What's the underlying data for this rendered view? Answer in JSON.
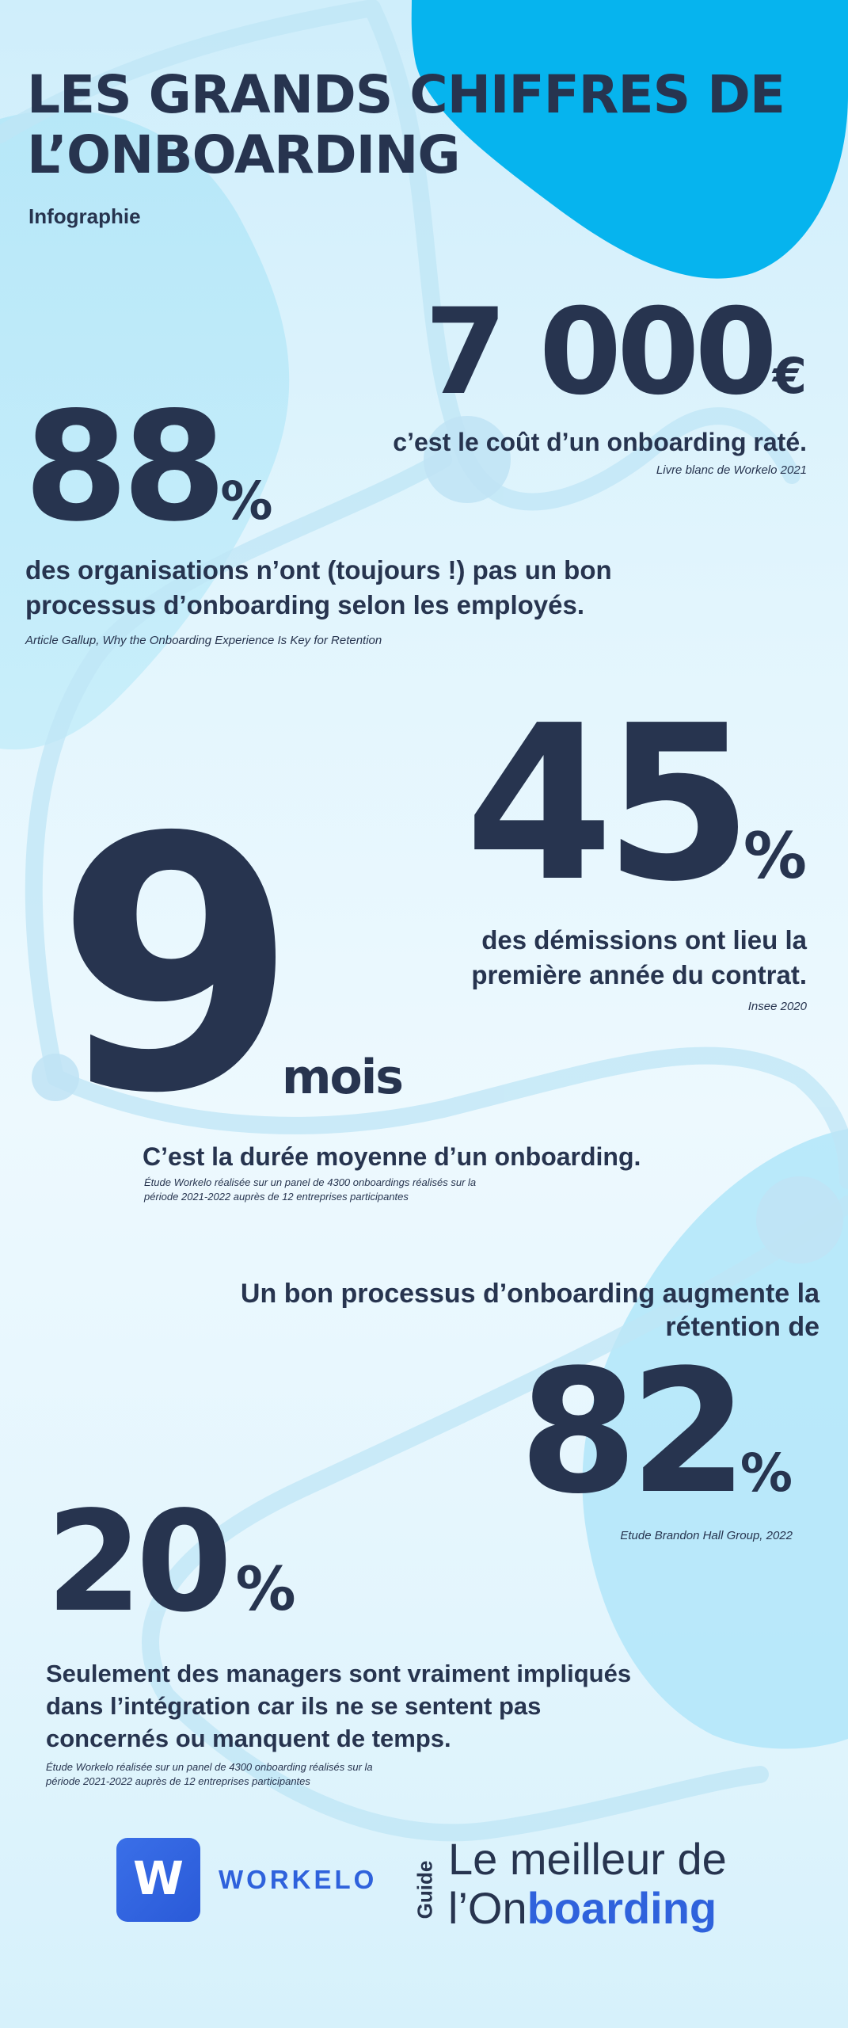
{
  "header": {
    "title_line1": "LES GRANDS CHIFFRES DE",
    "title_line2": "L’ONBOARDING",
    "subtitle": "Infographie"
  },
  "stats": {
    "cost": {
      "value": "7 000",
      "unit": "€",
      "text": "c’est le coût d’un onboarding raté.",
      "source": "Livre blanc de Workelo 2021"
    },
    "organisations": {
      "value": "88",
      "unit": "%",
      "text_line1": "des organisations n’ont (toujours !) pas un bon",
      "text_line2": "processus d’onboarding selon les employés.",
      "source": "Article Gallup, Why the Onboarding Experience Is Key for Retention"
    },
    "resignations": {
      "value": "45",
      "unit": "%",
      "text_line1": "des démissions ont lieu la",
      "text_line2": "première année du contrat.",
      "source": "Insee 2020"
    },
    "duration": {
      "value": "9",
      "unit": "mois",
      "text": "C’est la durée moyenne d’un onboarding.",
      "source_line1": "Étude Workelo réalisée sur un panel de 4300 onboardings réalisés sur la",
      "source_line2": "période 2021-2022 auprès de 12 entreprises participantes"
    },
    "retention": {
      "text_line1": "Un bon processus d’onboarding augmente la",
      "text_line2": "rétention de",
      "value": "82",
      "unit": "%",
      "source": "Etude Brandon Hall Group, 2022"
    },
    "managers": {
      "value": "20",
      "unit": "%",
      "text_line1": "Seulement des managers sont vraiment impliqués",
      "text_line2": "dans l’intégration car ils ne se sentent pas",
      "text_line3": "concernés ou manquent de temps.",
      "source_line1": "Étude Workelo réalisée sur un panel de 4300 onboarding réalisés sur la",
      "source_line2": "période 2021-2022 auprès de 12 entreprises participantes"
    }
  },
  "footer": {
    "logo_letter": "W",
    "brand": "WORKELO",
    "guide_label": "Guide",
    "guide_title_line1": "Le meilleur de",
    "guide_title_prefix": "l’On",
    "guide_title_highlight": "boarding"
  },
  "colors": {
    "text": "#27344f",
    "accent_blue": "#2f62dc",
    "blob_cyan": "#06b4ee",
    "blob_light": "#a9e2f7"
  }
}
